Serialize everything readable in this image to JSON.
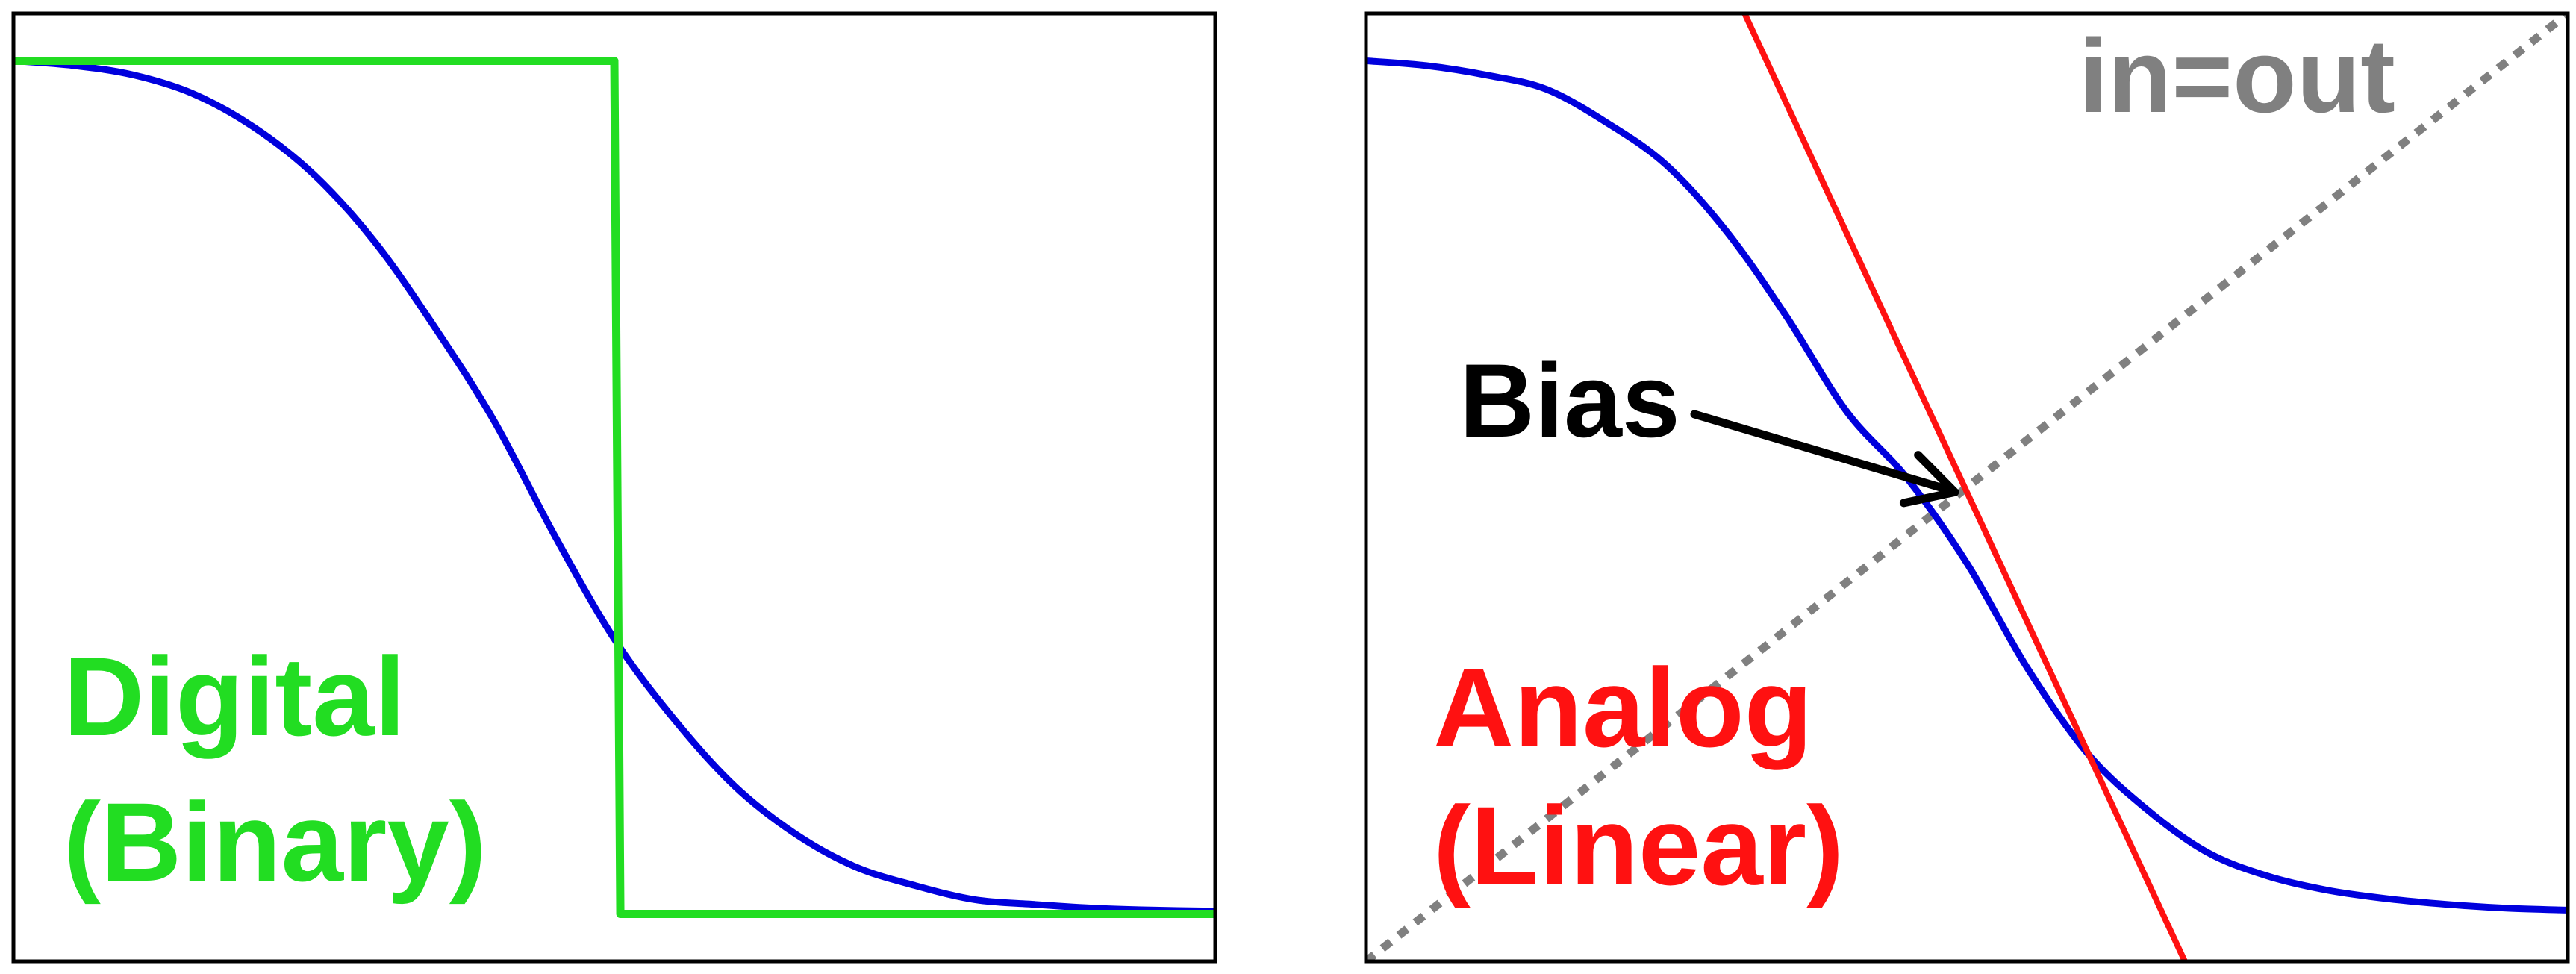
{
  "colors": {
    "transfer_curve": "#0000dd",
    "digital": "#22dd22",
    "analog": "#ff1111",
    "identity": "#808080",
    "annotation": "#000000",
    "frame": "#000000"
  },
  "chart_data": [
    {
      "type": "line",
      "title": "",
      "xlabel": "",
      "ylabel": "",
      "xlim": [
        0,
        1
      ],
      "ylim": [
        0,
        1
      ],
      "grid": false,
      "labels": [
        "Digital",
        "(Binary)"
      ],
      "series": [
        {
          "style": "sigmoid",
          "color_key": "transfer_curve",
          "x": [
            0.0,
            0.05,
            0.1,
            0.15,
            0.2,
            0.25,
            0.3,
            0.35,
            0.4,
            0.45,
            0.5,
            0.55,
            0.6,
            0.65,
            0.7,
            0.75,
            0.8,
            0.85,
            0.9,
            0.95,
            1.0
          ],
          "y": [
            0.95,
            0.945,
            0.935,
            0.915,
            0.88,
            0.83,
            0.76,
            0.67,
            0.57,
            0.45,
            0.34,
            0.255,
            0.185,
            0.135,
            0.1,
            0.08,
            0.065,
            0.06,
            0.056,
            0.054,
            0.053
          ]
        },
        {
          "style": "step",
          "color_key": "digital",
          "x": [
            0.0,
            0.5,
            0.505,
            1.0
          ],
          "y": [
            0.95,
            0.95,
            0.05,
            0.05
          ]
        }
      ]
    },
    {
      "type": "line",
      "title": "",
      "xlabel": "",
      "ylabel": "",
      "xlim": [
        0,
        1
      ],
      "ylim": [
        0,
        1
      ],
      "grid": false,
      "labels": [
        "Analog",
        "(Linear)"
      ],
      "identity_label": "in=out",
      "annotation": {
        "text": "Bias",
        "target_x": 0.49,
        "target_y": 0.495
      },
      "series": [
        {
          "style": "sigmoid",
          "color_key": "transfer_curve",
          "x": [
            0.0,
            0.05,
            0.1,
            0.15,
            0.2,
            0.25,
            0.3,
            0.35,
            0.4,
            0.45,
            0.5,
            0.55,
            0.6,
            0.65,
            0.7,
            0.75,
            0.8,
            0.85,
            0.9,
            0.95,
            1.0
          ],
          "y": [
            0.95,
            0.945,
            0.935,
            0.92,
            0.885,
            0.84,
            0.77,
            0.68,
            0.58,
            0.51,
            0.42,
            0.31,
            0.22,
            0.16,
            0.115,
            0.09,
            0.075,
            0.066,
            0.06,
            0.056,
            0.054
          ]
        },
        {
          "style": "tangent",
          "color_key": "analog",
          "x": [
            0.315,
            0.685
          ],
          "y": [
            1.0,
            -0.01
          ]
        },
        {
          "style": "identity",
          "color_key": "identity",
          "x": [
            0.0,
            1.0
          ],
          "y": [
            0.0,
            1.0
          ]
        }
      ]
    }
  ]
}
